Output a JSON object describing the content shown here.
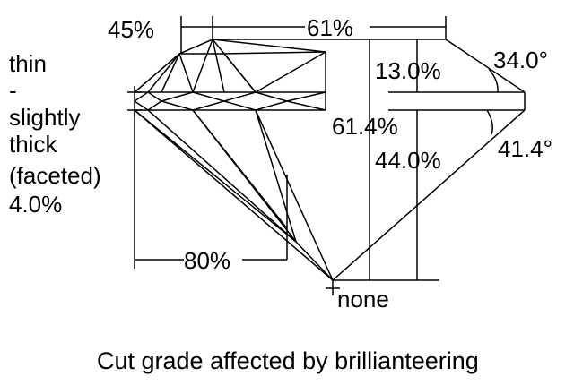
{
  "diagram": {
    "caption": "Cut grade affected by brillianteering",
    "table_width": "61%",
    "star_length": "45%",
    "crown_height": "13.0%",
    "crown_angle": "34.0°",
    "total_depth": "61.4%",
    "pavilion_depth": "44.0%",
    "pavilion_angle": "41.4°",
    "lower_half_length": "80%",
    "culet": "none",
    "girdle": [
      "thin",
      "-",
      "slightly",
      "thick",
      "(faceted)",
      "4.0%"
    ]
  }
}
